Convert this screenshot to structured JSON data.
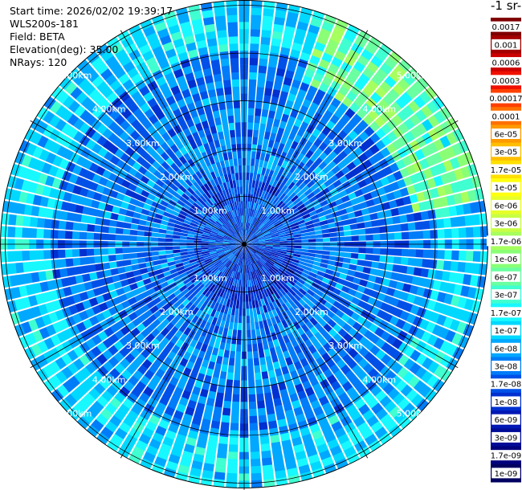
{
  "info": {
    "start_time": "Start time: 2026/02/02 19:39:17",
    "instrument": "WLS200s-181",
    "field": "Field: BETA",
    "elevation": "Elevation(deg): 35.00",
    "nrays": "NRays: 120"
  },
  "colorbar": {
    "title": "-1 sr-",
    "labels": [
      "0.0017",
      "0.001",
      "0.0006",
      "0.0003",
      "0.00017",
      "0.0001",
      "6e-05",
      "3e-05",
      "1.7e-05",
      "1e-05",
      "6e-06",
      "3e-06",
      "1.7e-06",
      "1e-06",
      "6e-07",
      "3e-07",
      "1.7e-07",
      "1e-07",
      "6e-08",
      "3e-08",
      "1.7e-08",
      "1e-08",
      "6e-09",
      "3e-09",
      "1.7e-09",
      "1e-09"
    ],
    "colors": [
      "#7f0000",
      "#a50000",
      "#cc0000",
      "#f01000",
      "#ff4000",
      "#ff7000",
      "#ff9a00",
      "#ffbe00",
      "#ffe000",
      "#ffff10",
      "#e6ff2a",
      "#c8ff44",
      "#a6ff5e",
      "#8aff76",
      "#6affa0",
      "#40ffd0",
      "#18f8ff",
      "#00d8ff",
      "#00a8ff",
      "#007cf8",
      "#0050e8",
      "#0030d0",
      "#0018b4",
      "#000c98",
      "#00007c",
      "#000060"
    ]
  },
  "chart_data": {
    "type": "heatmap",
    "projection": "polar PPI",
    "field": "BETA",
    "elevation_deg": 35.0,
    "n_rays": 120,
    "range_rings_km": [
      1.0,
      2.0,
      3.0,
      4.0,
      5.0
    ],
    "ring_labels": [
      "1.00km",
      "2.00km",
      "3.00km",
      "4.00km",
      "5.00km"
    ],
    "max_range_km": 5.1,
    "value_scale": "log",
    "value_range": [
      1e-09,
      0.0017
    ],
    "dominant_values": {
      "inner_0_1.5km": 1.7e-08,
      "mid_1.5_4km": 3e-08,
      "outer_4_5km": 1e-07,
      "northeast_outer_max": 1.7e-06
    }
  }
}
